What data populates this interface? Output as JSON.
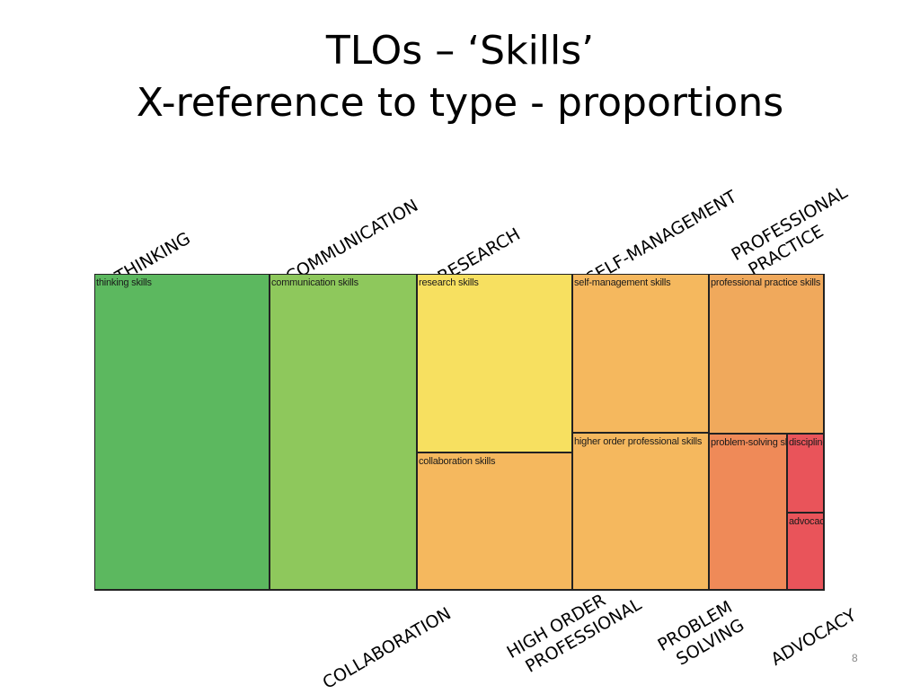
{
  "slide": {
    "title_line1": "TLOs – ‘Skills’",
    "title_line2": "X-reference to type - proportions",
    "page_number": "8"
  },
  "top_labels": {
    "thinking": "THINKING",
    "communication": "COMMUNICATION",
    "research": "RESEARCH",
    "self_management": "SELF-MANAGEMENT",
    "professional_practice_line1": "PROFESSIONAL",
    "professional_practice_line2": "PRACTICE"
  },
  "bottom_labels": {
    "collaboration": "COLLABORATION",
    "high_order_line1": "HIGH ORDER",
    "high_order_line2": "PROFESSIONAL",
    "problem_line1": "PROBLEM",
    "problem_line2": "SOLVING",
    "advocacy": "ADVOCACY"
  },
  "treemap": {
    "cells": {
      "thinking": {
        "label": "thinking skills",
        "color": "#5cb85f"
      },
      "communication": {
        "label": "communication skills",
        "color": "#8ec85c"
      },
      "research": {
        "label": "research skills",
        "color": "#f7e060"
      },
      "collaboration": {
        "label": "collaboration skills",
        "color": "#f5b85e"
      },
      "self_management": {
        "label": "self-management skills",
        "color": "#f5b85e"
      },
      "higher_order": {
        "label": "higher order professional skills",
        "color": "#f5b85e"
      },
      "professional_practice": {
        "label": "professional practice skills",
        "color": "#f0a95c"
      },
      "problem_solving": {
        "label": "problem-solving skills",
        "color": "#ef8a58"
      },
      "discipline": {
        "label": "discipline-specific skills",
        "color": "#e9545a"
      },
      "advocacy": {
        "label": "advocacy",
        "color": "#e9545a"
      }
    }
  }
}
